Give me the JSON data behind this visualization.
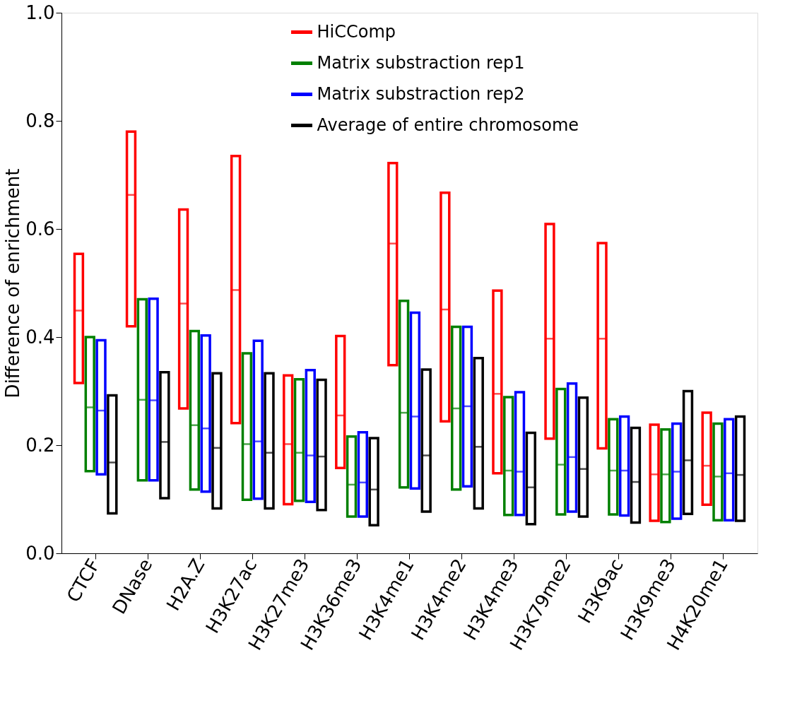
{
  "chart_data": {
    "type": "box",
    "ylabel": "Difference of enrichment",
    "categories": [
      "CTCF",
      "DNase",
      "H2A.Z",
      "H3K27ac",
      "H3K27me3",
      "H3K36me3",
      "H3K4me1",
      "H3K4me2",
      "H3K4me3",
      "H3K79me2",
      "H3K9ac",
      "H3K9me3",
      "H4K20me1"
    ],
    "ylim": [
      0,
      1
    ],
    "yticks": [
      {
        "value": 0,
        "label": "0.0"
      },
      {
        "value": 0.2,
        "label": "0.2"
      },
      {
        "value": 0.4,
        "label": "0.4"
      },
      {
        "value": 0.6,
        "label": "0.6"
      },
      {
        "value": 0.8,
        "label": "0.8"
      },
      {
        "value": 1,
        "label": "1.0"
      }
    ],
    "grid": false,
    "legend": "top",
    "series": [
      {
        "name": "HiCComp",
        "color": "#ff0000",
        "boxes": [
          {
            "low": 0.315,
            "q1": 0.315,
            "median": 0.449,
            "q3": 0.554,
            "high": 0.554
          },
          {
            "low": 0.42,
            "q1": 0.42,
            "median": 0.663,
            "q3": 0.78,
            "high": 0.78
          },
          {
            "low": 0.268,
            "q1": 0.268,
            "median": 0.462,
            "q3": 0.636,
            "high": 0.636
          },
          {
            "low": 0.241,
            "q1": 0.241,
            "median": 0.487,
            "q3": 0.735,
            "high": 0.735
          },
          {
            "low": 0.091,
            "q1": 0.091,
            "median": 0.202,
            "q3": 0.329,
            "high": 0.329
          },
          {
            "low": 0.158,
            "q1": 0.158,
            "median": 0.255,
            "q3": 0.402,
            "high": 0.402
          },
          {
            "low": 0.348,
            "q1": 0.348,
            "median": 0.573,
            "q3": 0.722,
            "high": 0.722
          },
          {
            "low": 0.244,
            "q1": 0.244,
            "median": 0.451,
            "q3": 0.667,
            "high": 0.667
          },
          {
            "low": 0.148,
            "q1": 0.148,
            "median": 0.295,
            "q3": 0.486,
            "high": 0.486
          },
          {
            "low": 0.212,
            "q1": 0.212,
            "median": 0.397,
            "q3": 0.609,
            "high": 0.609
          },
          {
            "low": 0.194,
            "q1": 0.194,
            "median": 0.397,
            "q3": 0.574,
            "high": 0.574
          },
          {
            "low": 0.06,
            "q1": 0.06,
            "median": 0.146,
            "q3": 0.238,
            "high": 0.238
          },
          {
            "low": 0.09,
            "q1": 0.09,
            "median": 0.162,
            "q3": 0.26,
            "high": 0.26
          }
        ]
      },
      {
        "name": "Matrix substraction rep1",
        "color": "#008000",
        "boxes": [
          {
            "low": 0.152,
            "q1": 0.152,
            "median": 0.27,
            "q3": 0.4,
            "high": 0.4
          },
          {
            "low": 0.135,
            "q1": 0.135,
            "median": 0.284,
            "q3": 0.47,
            "high": 0.47
          },
          {
            "low": 0.118,
            "q1": 0.118,
            "median": 0.237,
            "q3": 0.411,
            "high": 0.411
          },
          {
            "low": 0.099,
            "q1": 0.099,
            "median": 0.202,
            "q3": 0.37,
            "high": 0.37
          },
          {
            "low": 0.097,
            "q1": 0.097,
            "median": 0.186,
            "q3": 0.322,
            "high": 0.322
          },
          {
            "low": 0.068,
            "q1": 0.068,
            "median": 0.127,
            "q3": 0.216,
            "high": 0.216
          },
          {
            "low": 0.122,
            "q1": 0.122,
            "median": 0.26,
            "q3": 0.467,
            "high": 0.467
          },
          {
            "low": 0.118,
            "q1": 0.118,
            "median": 0.268,
            "q3": 0.419,
            "high": 0.419
          },
          {
            "low": 0.071,
            "q1": 0.071,
            "median": 0.153,
            "q3": 0.289,
            "high": 0.289
          },
          {
            "low": 0.072,
            "q1": 0.072,
            "median": 0.164,
            "q3": 0.304,
            "high": 0.304
          },
          {
            "low": 0.072,
            "q1": 0.072,
            "median": 0.153,
            "q3": 0.248,
            "high": 0.248
          },
          {
            "low": 0.058,
            "q1": 0.058,
            "median": 0.146,
            "q3": 0.229,
            "high": 0.229
          },
          {
            "low": 0.061,
            "q1": 0.061,
            "median": 0.142,
            "q3": 0.24,
            "high": 0.24
          }
        ]
      },
      {
        "name": "Matrix substraction rep2",
        "color": "#0000ff",
        "boxes": [
          {
            "low": 0.146,
            "q1": 0.146,
            "median": 0.264,
            "q3": 0.394,
            "high": 0.394
          },
          {
            "low": 0.135,
            "q1": 0.135,
            "median": 0.283,
            "q3": 0.471,
            "high": 0.471
          },
          {
            "low": 0.114,
            "q1": 0.114,
            "median": 0.231,
            "q3": 0.403,
            "high": 0.403
          },
          {
            "low": 0.101,
            "q1": 0.101,
            "median": 0.207,
            "q3": 0.393,
            "high": 0.393
          },
          {
            "low": 0.095,
            "q1": 0.095,
            "median": 0.181,
            "q3": 0.339,
            "high": 0.339
          },
          {
            "low": 0.068,
            "q1": 0.068,
            "median": 0.131,
            "q3": 0.224,
            "high": 0.224
          },
          {
            "low": 0.12,
            "q1": 0.12,
            "median": 0.253,
            "q3": 0.445,
            "high": 0.445
          },
          {
            "low": 0.124,
            "q1": 0.124,
            "median": 0.272,
            "q3": 0.419,
            "high": 0.419
          },
          {
            "low": 0.071,
            "q1": 0.071,
            "median": 0.151,
            "q3": 0.298,
            "high": 0.298
          },
          {
            "low": 0.077,
            "q1": 0.077,
            "median": 0.178,
            "q3": 0.314,
            "high": 0.314
          },
          {
            "low": 0.07,
            "q1": 0.07,
            "median": 0.153,
            "q3": 0.253,
            "high": 0.253
          },
          {
            "low": 0.064,
            "q1": 0.064,
            "median": 0.151,
            "q3": 0.24,
            "high": 0.24
          },
          {
            "low": 0.061,
            "q1": 0.061,
            "median": 0.148,
            "q3": 0.248,
            "high": 0.248
          }
        ]
      },
      {
        "name": "Average of entire chromosome",
        "color": "#000000",
        "boxes": [
          {
            "low": 0.074,
            "q1": 0.074,
            "median": 0.168,
            "q3": 0.292,
            "high": 0.292
          },
          {
            "low": 0.102,
            "q1": 0.102,
            "median": 0.206,
            "q3": 0.335,
            "high": 0.335
          },
          {
            "low": 0.083,
            "q1": 0.083,
            "median": 0.195,
            "q3": 0.333,
            "high": 0.333
          },
          {
            "low": 0.083,
            "q1": 0.083,
            "median": 0.186,
            "q3": 0.333,
            "high": 0.333
          },
          {
            "low": 0.08,
            "q1": 0.08,
            "median": 0.179,
            "q3": 0.321,
            "high": 0.321
          },
          {
            "low": 0.052,
            "q1": 0.052,
            "median": 0.118,
            "q3": 0.213,
            "high": 0.213
          },
          {
            "low": 0.077,
            "q1": 0.077,
            "median": 0.181,
            "q3": 0.34,
            "high": 0.34
          },
          {
            "low": 0.083,
            "q1": 0.083,
            "median": 0.197,
            "q3": 0.361,
            "high": 0.361
          },
          {
            "low": 0.054,
            "q1": 0.054,
            "median": 0.122,
            "q3": 0.223,
            "high": 0.223
          },
          {
            "low": 0.068,
            "q1": 0.068,
            "median": 0.156,
            "q3": 0.288,
            "high": 0.288
          },
          {
            "low": 0.057,
            "q1": 0.057,
            "median": 0.132,
            "q3": 0.232,
            "high": 0.232
          },
          {
            "low": 0.073,
            "q1": 0.073,
            "median": 0.172,
            "q3": 0.3,
            "high": 0.3
          },
          {
            "low": 0.06,
            "q1": 0.06,
            "median": 0.145,
            "q3": 0.253,
            "high": 0.253
          }
        ]
      }
    ]
  }
}
